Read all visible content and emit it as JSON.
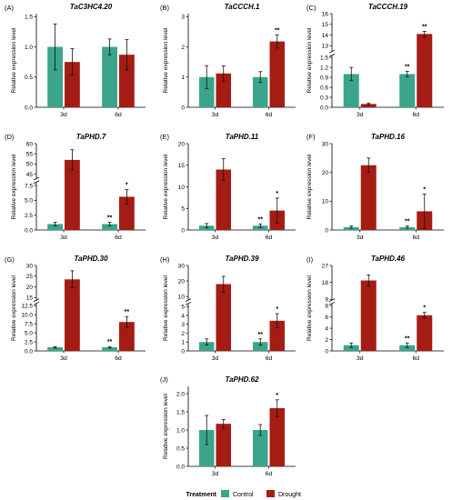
{
  "colors": {
    "control": "#3aa58a",
    "drought": "#a51c14"
  },
  "legend": {
    "title": "Treatment",
    "items": [
      "Control",
      "Drought"
    ]
  },
  "chart_data": [
    {
      "label": "(A)",
      "title": "TaC3HC4.20",
      "type": "bar",
      "ylabel": "Relative expression level",
      "categories": [
        "3d",
        "6d"
      ],
      "series": [
        {
          "name": "Control",
          "values": [
            1.0,
            1.0
          ],
          "errors": [
            0.38,
            0.13
          ]
        },
        {
          "name": "Drought",
          "values": [
            0.75,
            0.87
          ],
          "errors": [
            0.22,
            0.25
          ]
        }
      ],
      "ylim": [
        0,
        1.55
      ],
      "yticks": [
        "0.0",
        "0.5",
        "1.0",
        "1.5"
      ],
      "tickvals": [
        0,
        0.5,
        1,
        1.5
      ],
      "significance": [
        [
          "",
          ""
        ],
        [
          "",
          ""
        ]
      ]
    },
    {
      "label": "(B)",
      "title": "TaCCCH.1",
      "type": "bar",
      "ylabel": "Relative expression level",
      "categories": [
        "3d",
        "6d"
      ],
      "series": [
        {
          "name": "Control",
          "values": [
            1.0,
            1.0
          ],
          "errors": [
            0.38,
            0.18
          ]
        },
        {
          "name": "Drought",
          "values": [
            1.12,
            2.18
          ],
          "errors": [
            0.25,
            0.22
          ]
        }
      ],
      "ylim": [
        0,
        3.1
      ],
      "yticks": [
        "0",
        "1",
        "2",
        "3"
      ],
      "tickvals": [
        0,
        1,
        2,
        3
      ],
      "significance": [
        [
          "",
          ""
        ],
        [
          "",
          "**"
        ]
      ]
    },
    {
      "label": "(C)",
      "title": "TaCCCH.19",
      "type": "bar",
      "ylabel": "Relative expression level",
      "categories": [
        "3d",
        "6d"
      ],
      "series": [
        {
          "name": "Control",
          "values": [
            1.0,
            1.0
          ],
          "errors": [
            0.2,
            0.08
          ]
        },
        {
          "name": "Drought",
          "values": [
            0.1,
            14.1
          ],
          "errors": [
            0.03,
            0.25
          ]
        }
      ],
      "ylim": [
        0,
        16
      ],
      "yticks": [
        "0.0",
        "0.3",
        "0.6",
        "0.9",
        "1.2",
        "1.5",
        "13",
        "14",
        "15",
        "16"
      ],
      "tickvals": [
        0,
        0.3,
        0.6,
        0.9,
        1.2,
        1.5,
        13,
        14,
        15,
        16
      ],
      "axis_break": [
        1.55,
        12.5
      ],
      "significance": [
        [
          "",
          "**"
        ],
        [
          "",
          "**"
        ]
      ]
    },
    {
      "label": "(D)",
      "title": "TaPHD.7",
      "type": "bar",
      "ylabel": "Relative expression level",
      "categories": [
        "3d",
        "6d"
      ],
      "series": [
        {
          "name": "Control",
          "values": [
            1.0,
            1.0
          ],
          "errors": [
            0.3,
            0.3
          ]
        },
        {
          "name": "Drought",
          "values": [
            52,
            5.6
          ],
          "errors": [
            5,
            1.2
          ]
        }
      ],
      "ylim": [
        0,
        60
      ],
      "yticks": [
        "0.0",
        "2.5",
        "5.0",
        "7.5",
        "45",
        "50",
        "55",
        "60"
      ],
      "tickvals": [
        0,
        2.5,
        5,
        7.5,
        45,
        50,
        55,
        60
      ],
      "axis_break": [
        8,
        43
      ],
      "significance": [
        [
          "",
          "**"
        ],
        [
          "",
          "*"
        ]
      ]
    },
    {
      "label": "(E)",
      "title": "TaPHD.11",
      "type": "bar",
      "ylabel": "Relative expression level",
      "categories": [
        "3d",
        "6d"
      ],
      "series": [
        {
          "name": "Control",
          "values": [
            1.0,
            1.0
          ],
          "errors": [
            0.5,
            0.4
          ]
        },
        {
          "name": "Drought",
          "values": [
            14,
            4.5
          ],
          "errors": [
            2.5,
            2.9
          ]
        }
      ],
      "ylim": [
        0,
        20
      ],
      "yticks": [
        "0",
        "5",
        "10",
        "15",
        "20"
      ],
      "tickvals": [
        0,
        5,
        10,
        15,
        20
      ],
      "significance": [
        [
          "",
          "**"
        ],
        [
          "",
          "*"
        ]
      ]
    },
    {
      "label": "(F)",
      "title": "TaPHD.16",
      "type": "bar",
      "ylabel": "Relative expression level",
      "categories": [
        "3d",
        "6d"
      ],
      "series": [
        {
          "name": "Control",
          "values": [
            1.0,
            1.0
          ],
          "errors": [
            0.4,
            0.4
          ]
        },
        {
          "name": "Drought",
          "values": [
            22.5,
            6.5
          ],
          "errors": [
            2.5,
            6
          ]
        }
      ],
      "ylim": [
        0,
        30
      ],
      "yticks": [
        "0",
        "10",
        "20",
        "30"
      ],
      "tickvals": [
        0,
        10,
        20,
        30
      ],
      "significance": [
        [
          "",
          "**"
        ],
        [
          "",
          "*"
        ]
      ]
    },
    {
      "label": "(G)",
      "title": "TaPHD.30",
      "type": "bar",
      "ylabel": "Relative expression level",
      "categories": [
        "3d",
        "6d"
      ],
      "series": [
        {
          "name": "Control",
          "values": [
            1.0,
            1.0
          ],
          "errors": [
            0.2,
            0.2
          ]
        },
        {
          "name": "Drought",
          "values": [
            23.5,
            8
          ],
          "errors": [
            4,
            1.5
          ]
        }
      ],
      "ylim": [
        0,
        30
      ],
      "yticks": [
        "0.0",
        "2.5",
        "5.0",
        "7.5",
        "10.0",
        "12.5",
        "15",
        "20",
        "25",
        "30"
      ],
      "tickvals": [
        0,
        2.5,
        5,
        7.5,
        10,
        12.5,
        15,
        20,
        25,
        30
      ],
      "axis_break": [
        13,
        14
      ],
      "significance": [
        [
          "",
          "**"
        ],
        [
          "",
          "**"
        ]
      ]
    },
    {
      "label": "(H)",
      "title": "TaPHD.39",
      "type": "bar",
      "ylabel": "Relative expression level",
      "categories": [
        "3d",
        "6d"
      ],
      "series": [
        {
          "name": "Control",
          "values": [
            1.0,
            1.0
          ],
          "errors": [
            0.35,
            0.35
          ]
        },
        {
          "name": "Drought",
          "values": [
            18,
            3.4
          ],
          "errors": [
            5,
            0.8
          ]
        }
      ],
      "ylim": [
        0,
        30
      ],
      "yticks": [
        "0",
        "1",
        "2",
        "3",
        "4",
        "5",
        "10",
        "20",
        "30"
      ],
      "tickvals": [
        0,
        1,
        2,
        3,
        4,
        5,
        10,
        20,
        30
      ],
      "axis_break": [
        5.3,
        8
      ],
      "significance": [
        [
          "",
          "**"
        ],
        [
          "",
          "*"
        ]
      ]
    },
    {
      "label": "(I)",
      "title": "TaPHD.46",
      "type": "bar",
      "ylabel": "Relative expression level",
      "categories": [
        "3d",
        "6d"
      ],
      "series": [
        {
          "name": "Control",
          "values": [
            1.0,
            1.0
          ],
          "errors": [
            0.4,
            0.4
          ]
        },
        {
          "name": "Drought",
          "values": [
            19,
            6.3
          ],
          "errors": [
            3,
            0.5
          ]
        }
      ],
      "ylim": [
        0,
        27
      ],
      "yticks": [
        "0",
        "2",
        "4",
        "6",
        "8",
        "9",
        "18",
        "27"
      ],
      "tickvals": [
        0,
        2,
        4,
        6,
        8,
        9,
        18,
        27
      ],
      "axis_break": [
        8.3,
        8.8
      ],
      "significance": [
        [
          "",
          "**"
        ],
        [
          "",
          "*"
        ]
      ]
    },
    {
      "label": "(J)",
      "title": "TaPHD.62",
      "type": "bar",
      "ylabel": "Relative expression level",
      "categories": [
        "3d",
        "6d"
      ],
      "series": [
        {
          "name": "Control",
          "values": [
            1.0,
            1.0
          ],
          "errors": [
            0.4,
            0.15
          ]
        },
        {
          "name": "Drought",
          "values": [
            1.17,
            1.6
          ],
          "errors": [
            0.12,
            0.23
          ]
        }
      ],
      "ylim": [
        0,
        2.2
      ],
      "yticks": [
        "0.0",
        "0.5",
        "1.0",
        "1.5",
        "2.0"
      ],
      "tickvals": [
        0,
        0.5,
        1,
        1.5,
        2
      ],
      "significance": [
        [
          "",
          ""
        ],
        [
          "",
          "*"
        ]
      ]
    }
  ]
}
